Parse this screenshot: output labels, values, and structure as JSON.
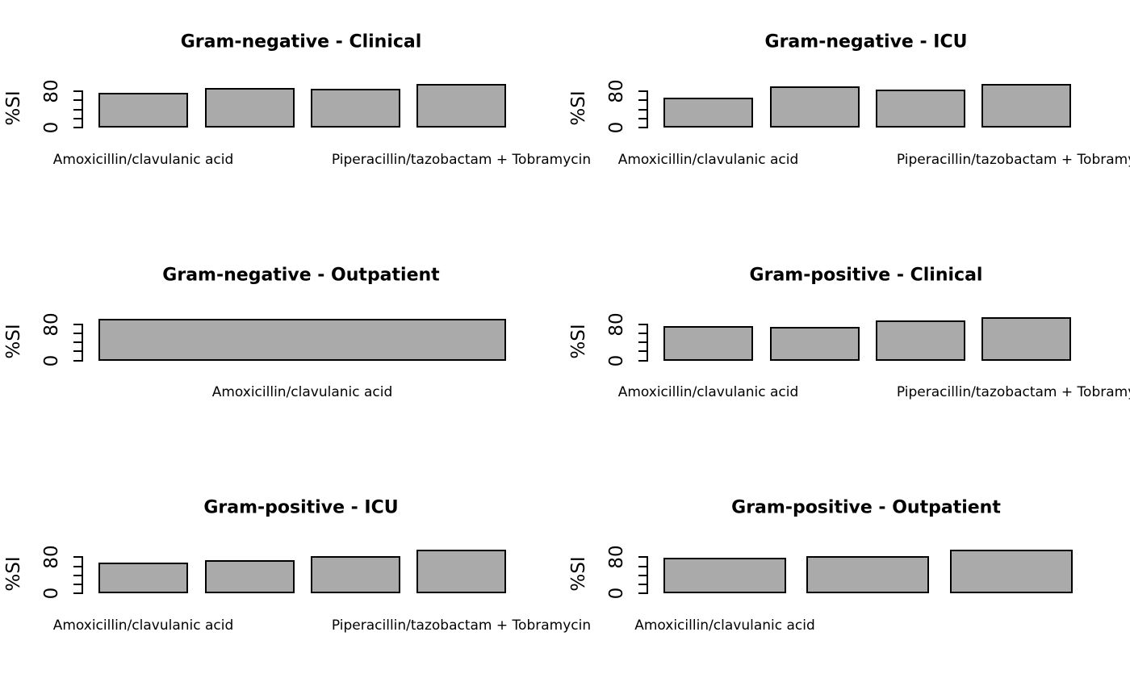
{
  "figure": {
    "background": "#ffffff",
    "bar_fill": "#aaaaaa",
    "bar_border": "#000000",
    "grid_layout": "2 columns x 3 rows"
  },
  "chart_data": [
    {
      "type": "bar",
      "title": "Gram-negative - Clinical",
      "ylabel": "%SI",
      "ylim": [
        0,
        100
      ],
      "grid": false,
      "yticks": [
        0,
        20,
        40,
        60,
        80
      ],
      "ytick_labels": [
        {
          "value": 0,
          "label": "0"
        },
        {
          "value": 80,
          "label": "80"
        }
      ],
      "values": [
        77,
        87,
        86,
        96
      ],
      "visible_xlabels": [
        {
          "text": "Amoxicillin/clavulanic acid",
          "bar": 0
        },
        {
          "text": "Piperacillin/tazobactam + Tobramycin",
          "bar": 3
        }
      ]
    },
    {
      "type": "bar",
      "title": "Gram-negative - ICU",
      "ylabel": "%SI",
      "ylim": [
        0,
        100
      ],
      "grid": false,
      "yticks": [
        0,
        20,
        40,
        60,
        80
      ],
      "ytick_labels": [
        {
          "value": 0,
          "label": "0"
        },
        {
          "value": 80,
          "label": "80"
        }
      ],
      "values": [
        66,
        91,
        83,
        96
      ],
      "visible_xlabels": [
        {
          "text": "Amoxicillin/clavulanic acid",
          "bar": 0
        },
        {
          "text": "Piperacillin/tazobactam + Tobramycin",
          "bar": 3
        }
      ]
    },
    {
      "type": "bar",
      "title": "Gram-negative - Outpatient",
      "ylabel": "%SI",
      "ylim": [
        0,
        100
      ],
      "grid": false,
      "yticks": [
        0,
        20,
        40,
        60,
        80
      ],
      "ytick_labels": [
        {
          "value": 0,
          "label": "0"
        },
        {
          "value": 80,
          "label": "80"
        }
      ],
      "values": [
        92
      ],
      "visible_xlabels": [
        {
          "text": "Amoxicillin/clavulanic acid",
          "bar": 0
        }
      ]
    },
    {
      "type": "bar",
      "title": "Gram-positive - Clinical",
      "ylabel": "%SI",
      "ylim": [
        0,
        100
      ],
      "grid": false,
      "yticks": [
        0,
        20,
        40,
        60,
        80
      ],
      "ytick_labels": [
        {
          "value": 0,
          "label": "0"
        },
        {
          "value": 80,
          "label": "80"
        }
      ],
      "values": [
        76,
        75,
        89,
        96
      ],
      "visible_xlabels": [
        {
          "text": "Amoxicillin/clavulanic acid",
          "bar": 0
        },
        {
          "text": "Piperacillin/tazobactam + Tobramycin",
          "bar": 3
        }
      ]
    },
    {
      "type": "bar",
      "title": "Gram-positive - ICU",
      "ylabel": "%SI",
      "ylim": [
        0,
        100
      ],
      "grid": false,
      "yticks": [
        0,
        20,
        40,
        60,
        80
      ],
      "ytick_labels": [
        {
          "value": 0,
          "label": "0"
        },
        {
          "value": 80,
          "label": "80"
        }
      ],
      "values": [
        68,
        73,
        82,
        96
      ],
      "visible_xlabels": [
        {
          "text": "Amoxicillin/clavulanic acid",
          "bar": 0
        },
        {
          "text": "Piperacillin/tazobactam + Tobramycin",
          "bar": 3
        }
      ]
    },
    {
      "type": "bar",
      "title": "Gram-positive - Outpatient",
      "ylabel": "%SI",
      "ylim": [
        0,
        100
      ],
      "grid": false,
      "yticks": [
        0,
        20,
        40,
        60,
        80
      ],
      "ytick_labels": [
        {
          "value": 0,
          "label": "0"
        },
        {
          "value": 80,
          "label": "80"
        }
      ],
      "values": [
        78,
        82,
        96
      ],
      "visible_xlabels": [
        {
          "text": "Amoxicillin/clavulanic acid",
          "bar": 0
        }
      ]
    }
  ]
}
